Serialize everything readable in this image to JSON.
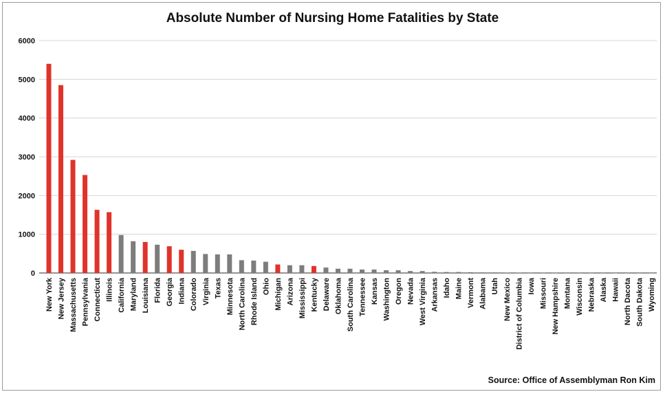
{
  "chart_data": {
    "type": "bar",
    "title": "Absolute Number of Nursing Home Fatalities by State",
    "source": "Source: Office of Assemblyman Ron Kim",
    "xlabel": "",
    "ylabel": "",
    "ylim": [
      0,
      6000
    ],
    "yticks": [
      0,
      1000,
      2000,
      3000,
      4000,
      5000,
      6000
    ],
    "grid": true,
    "legend": "none",
    "colors": {
      "highlight": "#e0332b",
      "other": "#7d7d7d",
      "grid": "#d4d4d4"
    },
    "categories": [
      "New York",
      "New Jersey",
      "Massachusetts",
      "Pennsylvania",
      "Connecticut",
      "Illinois",
      "California",
      "Maryland",
      "Louisiana",
      "Florida",
      "Georgia",
      "Indiana",
      "Colorado",
      "Virginia",
      "Texas",
      "Minnesota",
      "North Carolina",
      "Rhode Island",
      "Ohio",
      "Michigan",
      "Arizona",
      "Mississippi",
      "Kentucky",
      "Delaware",
      "Oklahoma",
      "South Carolina",
      "Tennessee",
      "Kansas",
      "Washington",
      "Oregon",
      "Nevada",
      "West Virginia",
      "Arkansas",
      "Idaho",
      "Maine",
      "Vermont",
      "Alabama",
      "Utah",
      "New Mexico",
      "District of Columbia",
      "Iowa",
      "Missouri",
      "New Hampshire",
      "Montana",
      "Wisconsin",
      "Nebraska",
      "Alaska",
      "Hawaii",
      "North Dacota",
      "South Dakota",
      "Wyoming"
    ],
    "values": [
      5400,
      4850,
      2920,
      2530,
      1630,
      1570,
      980,
      820,
      800,
      730,
      690,
      600,
      570,
      490,
      480,
      480,
      330,
      320,
      290,
      220,
      200,
      200,
      180,
      140,
      110,
      110,
      90,
      90,
      70,
      70,
      50,
      50,
      30,
      25,
      25,
      20,
      15,
      15,
      10,
      8,
      5,
      5,
      5,
      3,
      3,
      2,
      2,
      1,
      1,
      1,
      1
    ],
    "highlighted": [
      true,
      true,
      true,
      true,
      true,
      true,
      false,
      false,
      true,
      false,
      true,
      true,
      false,
      false,
      false,
      false,
      false,
      false,
      false,
      true,
      false,
      false,
      true,
      false,
      false,
      false,
      false,
      false,
      false,
      false,
      false,
      false,
      false,
      false,
      false,
      false,
      false,
      false,
      false,
      false,
      false,
      false,
      false,
      false,
      false,
      false,
      false,
      false,
      false,
      false,
      false
    ]
  }
}
